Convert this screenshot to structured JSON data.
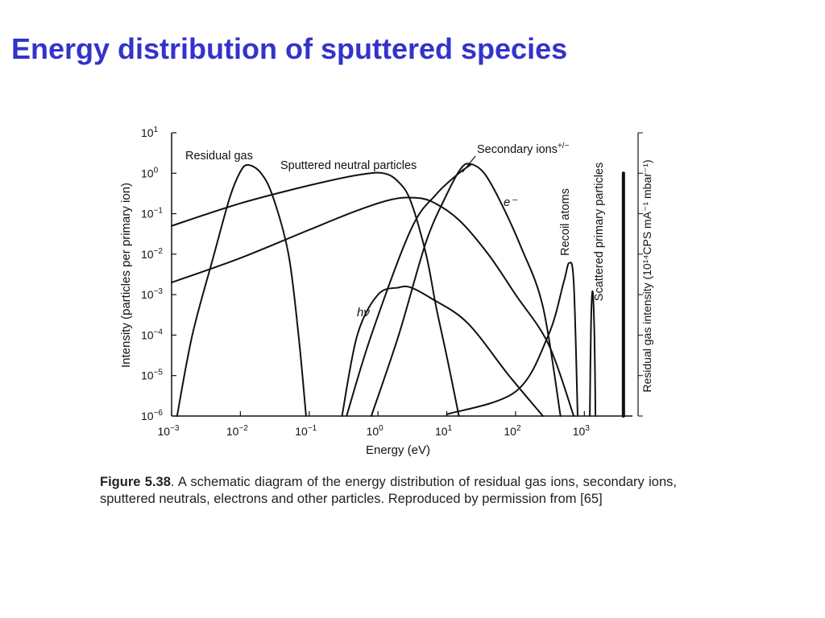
{
  "slide": {
    "title": "Energy distribution of sputtered species"
  },
  "chart_data": {
    "type": "line",
    "x_scale": "log",
    "y_scale": "log",
    "xlim": [
      0.001,
      5000
    ],
    "ylim": [
      1e-06,
      10
    ],
    "grid": false,
    "xlabel": "Energy (eV)",
    "ylabel": "Intensity (particles per primary ion)",
    "y2label": "Residual gas intensity (10¹⁴CPS mA⁻¹ mbar⁻¹)",
    "x_ticks": [
      {
        "value": 0.001,
        "base": "10",
        "exp": "−3"
      },
      {
        "value": 0.01,
        "base": "10",
        "exp": "−2"
      },
      {
        "value": 0.1,
        "base": "10",
        "exp": "−1"
      },
      {
        "value": 1,
        "base": "10",
        "exp": "0"
      },
      {
        "value": 10,
        "base": "10",
        "exp": "1"
      },
      {
        "value": 100,
        "base": "10",
        "exp": "2"
      },
      {
        "value": 1000,
        "base": "10",
        "exp": "3"
      }
    ],
    "y_ticks": [
      {
        "value": 10,
        "base": "10",
        "exp": "1"
      },
      {
        "value": 1,
        "base": "10",
        "exp": "0"
      },
      {
        "value": 0.1,
        "base": "10",
        "exp": "−1"
      },
      {
        "value": 0.01,
        "base": "10",
        "exp": "−2"
      },
      {
        "value": 0.001,
        "base": "10",
        "exp": "−3"
      },
      {
        "value": 0.0001,
        "base": "10",
        "exp": "−4"
      },
      {
        "value": 1e-05,
        "base": "10",
        "exp": "−5"
      },
      {
        "value": 1e-06,
        "base": "10",
        "exp": "−6"
      }
    ],
    "series": [
      {
        "name": "Residual gas",
        "points": [
          [
            0.0012,
            1e-06
          ],
          [
            0.002,
            0.0001
          ],
          [
            0.004,
            0.008
          ],
          [
            0.007,
            0.25
          ],
          [
            0.01,
            1.1
          ],
          [
            0.013,
            1.6
          ],
          [
            0.02,
            1.0
          ],
          [
            0.03,
            0.25
          ],
          [
            0.05,
            0.01
          ],
          [
            0.07,
            0.0001
          ],
          [
            0.09,
            1e-06
          ]
        ]
      },
      {
        "name": "Sputtered neutral particles",
        "points": [
          [
            0.001,
            0.05
          ],
          [
            0.01,
            0.18
          ],
          [
            0.1,
            0.5
          ],
          [
            0.5,
            0.9
          ],
          [
            1.2,
            1.0
          ],
          [
            2,
            0.6
          ],
          [
            3,
            0.2
          ],
          [
            5,
            0.01
          ],
          [
            7,
            0.0005
          ],
          [
            10,
            3e-05
          ],
          [
            15,
            1e-06
          ]
        ]
      },
      {
        "name": "",
        "points": [
          [
            0.001,
            0.002
          ],
          [
            0.01,
            0.008
          ],
          [
            0.1,
            0.04
          ],
          [
            0.5,
            0.12
          ],
          [
            1.5,
            0.22
          ],
          [
            3,
            0.25
          ],
          [
            6,
            0.2
          ],
          [
            15,
            0.07
          ],
          [
            40,
            0.01
          ],
          [
            100,
            0.001
          ],
          [
            300,
            6e-05
          ],
          [
            700,
            1e-06
          ]
        ]
      },
      {
        "name": "Secondary ions",
        "points": [
          [
            0.8,
            1e-06
          ],
          [
            2,
            0.0001
          ],
          [
            5,
            0.02
          ],
          [
            10,
            0.3
          ],
          [
            16,
            1.3
          ],
          [
            22,
            1.7
          ],
          [
            35,
            1.0
          ],
          [
            60,
            0.2
          ],
          [
            120,
            0.015
          ],
          [
            250,
            0.0005
          ],
          [
            450,
            1e-06
          ]
        ]
      },
      {
        "name": "e⁻",
        "points": [
          [
            0.35,
            1e-06
          ],
          [
            0.8,
            0.0001
          ],
          [
            3,
            0.04
          ],
          [
            7,
            0.3
          ],
          [
            15,
            1.0
          ],
          [
            22,
            1.6
          ]
        ]
      },
      {
        "name": "hν",
        "points": [
          [
            0.3,
            1e-06
          ],
          [
            0.5,
            0.0001
          ],
          [
            1,
            0.001
          ],
          [
            2,
            0.0015
          ],
          [
            3,
            0.0015
          ],
          [
            6,
            0.0008
          ],
          [
            20,
            0.0002
          ],
          [
            80,
            1e-05
          ],
          [
            250,
            1e-06
          ]
        ]
      },
      {
        "name": "Recoil atoms",
        "points": [
          [
            10,
            1.1e-06
          ],
          [
            100,
            4e-06
          ],
          [
            300,
            0.0001
          ],
          [
            500,
            0.002
          ],
          [
            600,
            0.006
          ],
          [
            700,
            0.002
          ],
          [
            800,
            1e-06
          ]
        ]
      },
      {
        "name": "Scattered primary particles",
        "points": [
          [
            1200,
            1e-06
          ],
          [
            1250,
            0.0002
          ],
          [
            1320,
            0.0012
          ],
          [
            1400,
            0.0001
          ],
          [
            1450,
            1e-06
          ]
        ]
      },
      {
        "name": "Residual gas intensity",
        "points": [
          [
            3700,
            1e-06
          ],
          [
            3700,
            1.0
          ]
        ]
      }
    ],
    "labels": {
      "residual_gas": "Residual gas",
      "sputtered_neutrals": "Sputtered neutral particles",
      "secondary_ions": "Secondary ions",
      "secondary_ions_sup": "+/−",
      "electron": "e⁻",
      "photon": "hν",
      "recoil_atoms": "Recoil atoms",
      "scattered_primary": "Scattered primary particles"
    }
  },
  "caption": {
    "figure_label": "Figure 5.38",
    "text": ". A schematic diagram of the energy distribution of residual gas ions, secondary ions, sputtered neutrals, electrons and other particles. Reproduced by permission from [65]"
  }
}
